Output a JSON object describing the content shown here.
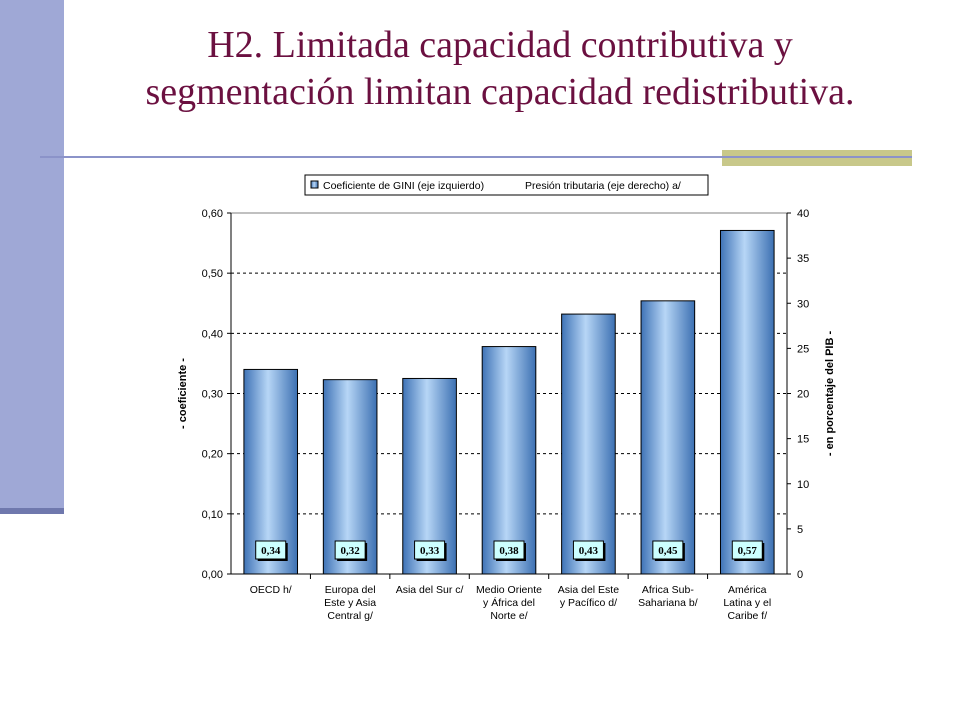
{
  "slide": {
    "title_line1": "H2. Limitada capacidad contributiva y",
    "title_line2": "segmentación limitan capacidad redistributiva.",
    "colors": {
      "title": "#6b1040",
      "accent_bar": "#9fa8d6",
      "bar_fill": "#6ea4db"
    }
  },
  "chart_data": {
    "type": "bar",
    "title": "",
    "legend": [
      "Coeficiente de GINI (eje izquierdo)",
      "Presión tributaria (eje derecho) a/"
    ],
    "legend_position": "top",
    "categories": [
      [
        "OECD h/"
      ],
      [
        "Europa del",
        "Este y Asia",
        "Central g/"
      ],
      [
        "Asia del Sur c/"
      ],
      [
        "Medio Oriente",
        "y África del",
        "Norte e/"
      ],
      [
        "Asia del Este",
        "y Pacífico d/"
      ],
      [
        "Africa Sub-",
        "Sahariana b/"
      ],
      [
        "América",
        "Latina y el",
        "Caribe f/"
      ]
    ],
    "series": [
      {
        "name": "Coeficiente de GINI (eje izquierdo)",
        "values": [
          0.34,
          0.323,
          0.325,
          0.378,
          0.432,
          0.454,
          0.571
        ],
        "axis": "left"
      }
    ],
    "data_labels": [
      "0,34",
      "0,32",
      "0,33",
      "0,38",
      "0,43",
      "0,45",
      "0,57"
    ],
    "ylabel_left": "- coeficiente -",
    "ylabel_right": "- en porcentaje del PIB -",
    "ylim_left": [
      0,
      0.6
    ],
    "ylim_right": [
      0,
      40
    ],
    "yticks_left": [
      "0,00",
      "0,10",
      "0,20",
      "0,30",
      "0,40",
      "0,50",
      "0,60"
    ],
    "yticks_right": [
      "0",
      "5",
      "10",
      "15",
      "20",
      "25",
      "30",
      "35",
      "40"
    ],
    "grid": true
  }
}
